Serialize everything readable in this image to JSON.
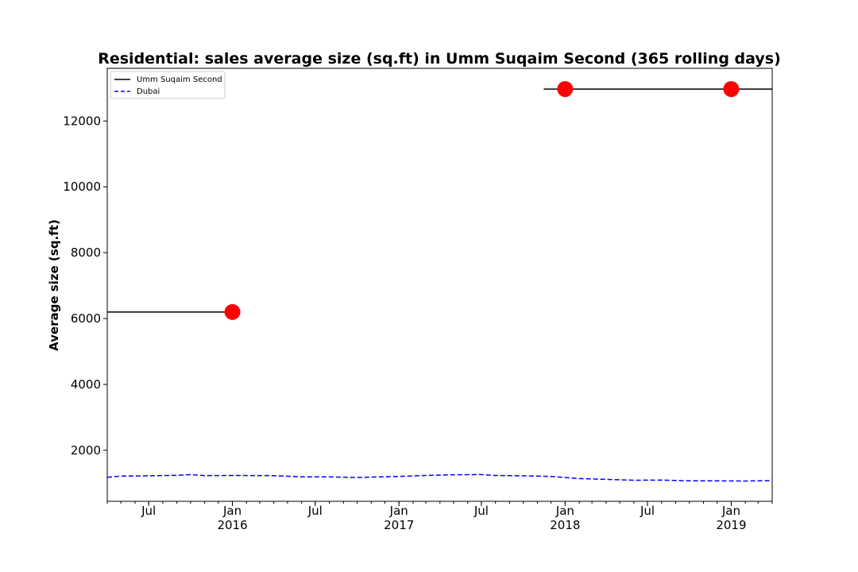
{
  "chart_data": {
    "type": "line",
    "title": "Residential: sales average size (sq.ft) in Umm Suqaim Second (365 rolling days)",
    "xlabel": "",
    "ylabel": "Average size (sq.ft)",
    "xlim": [
      "2015-04-01",
      "2019-04-01"
    ],
    "ylim": [
      450,
      13600
    ],
    "grid": false,
    "legend": "top-left",
    "yticks": [
      2000,
      4000,
      6000,
      8000,
      10000,
      12000
    ],
    "xticks": [
      {
        "date": "2015-07-01",
        "label": "Jul",
        "sublabel": ""
      },
      {
        "date": "2016-01-01",
        "label": "Jan",
        "sublabel": "2016"
      },
      {
        "date": "2016-07-01",
        "label": "Jul",
        "sublabel": ""
      },
      {
        "date": "2017-01-01",
        "label": "Jan",
        "sublabel": "2017"
      },
      {
        "date": "2017-07-01",
        "label": "Jul",
        "sublabel": ""
      },
      {
        "date": "2018-01-01",
        "label": "Jan",
        "sublabel": "2018"
      },
      {
        "date": "2018-07-01",
        "label": "Jul",
        "sublabel": ""
      },
      {
        "date": "2019-01-01",
        "label": "Jan",
        "sublabel": "2019"
      }
    ],
    "series": [
      {
        "name": "Umm Suqaim Second",
        "color": "#000000",
        "style": "solid",
        "segments": [
          [
            {
              "x": "2015-04-01",
              "y": 6200
            },
            {
              "x": "2016-01-01",
              "y": 6200
            }
          ],
          [
            {
              "x": "2017-11-15",
              "y": 12970
            },
            {
              "x": "2019-04-01",
              "y": 12970
            }
          ]
        ]
      },
      {
        "name": "Dubai",
        "color": "#0000ff",
        "style": "dashed",
        "points": [
          {
            "x": "2015-04-01",
            "y": 1180
          },
          {
            "x": "2015-05-01",
            "y": 1215
          },
          {
            "x": "2015-07-01",
            "y": 1225
          },
          {
            "x": "2015-09-01",
            "y": 1240
          },
          {
            "x": "2015-10-01",
            "y": 1260
          },
          {
            "x": "2015-11-01",
            "y": 1230
          },
          {
            "x": "2016-01-01",
            "y": 1235
          },
          {
            "x": "2016-04-01",
            "y": 1230
          },
          {
            "x": "2016-06-01",
            "y": 1190
          },
          {
            "x": "2016-08-01",
            "y": 1190
          },
          {
            "x": "2016-10-01",
            "y": 1175
          },
          {
            "x": "2017-01-01",
            "y": 1205
          },
          {
            "x": "2017-03-01",
            "y": 1235
          },
          {
            "x": "2017-05-01",
            "y": 1255
          },
          {
            "x": "2017-07-01",
            "y": 1260
          },
          {
            "x": "2017-08-01",
            "y": 1235
          },
          {
            "x": "2017-10-01",
            "y": 1225
          },
          {
            "x": "2017-12-01",
            "y": 1205
          },
          {
            "x": "2018-02-01",
            "y": 1140
          },
          {
            "x": "2018-04-01",
            "y": 1115
          },
          {
            "x": "2018-06-01",
            "y": 1090
          },
          {
            "x": "2018-08-01",
            "y": 1095
          },
          {
            "x": "2018-10-01",
            "y": 1070
          },
          {
            "x": "2018-12-01",
            "y": 1070
          },
          {
            "x": "2019-02-01",
            "y": 1065
          },
          {
            "x": "2019-04-01",
            "y": 1080
          }
        ]
      }
    ],
    "markers": [
      {
        "x": "2016-01-01",
        "y": 6200,
        "color": "#ff0000"
      },
      {
        "x": "2018-01-01",
        "y": 12970,
        "color": "#ff0000"
      },
      {
        "x": "2019-01-01",
        "y": 12970,
        "color": "#ff0000"
      }
    ]
  }
}
